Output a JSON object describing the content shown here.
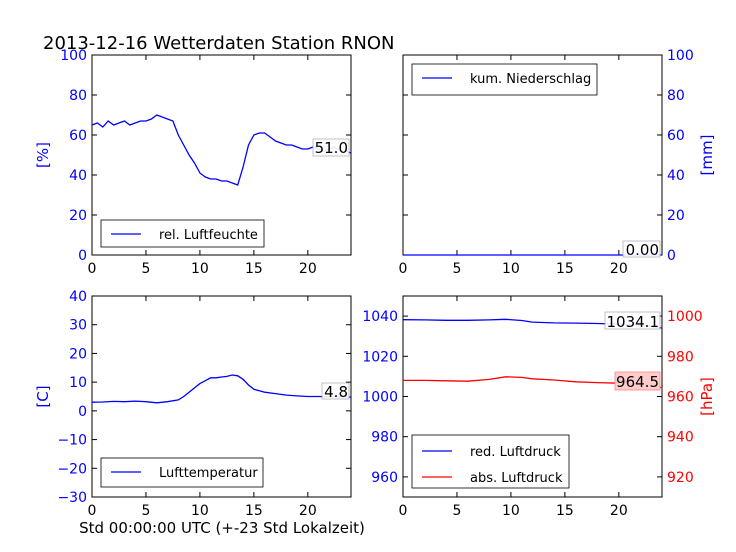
{
  "figure_title": "2013-12-16 Wetterdaten Station RNON",
  "x_axis_label": "Std 00:00:00 UTC (+-23 Std Lokalzeit)",
  "colors": {
    "blue": "#0000ff",
    "red": "#ff0000",
    "black": "#000000"
  },
  "chart_data": [
    {
      "type": "line",
      "xlim": [
        0,
        24
      ],
      "ylim": [
        0,
        100
      ],
      "ylabel": "[%]",
      "xticks": [
        0,
        5,
        10,
        15,
        20
      ],
      "yticks": [
        0,
        20,
        40,
        60,
        80,
        100
      ],
      "legend_position": "lower-left",
      "series": [
        {
          "name": "rel. Luftfeuchte",
          "color": "#0000ff",
          "x": [
            0,
            0.5,
            1,
            1.5,
            2,
            2.5,
            3,
            3.5,
            4,
            4.5,
            5,
            5.5,
            6,
            6.5,
            7,
            7.5,
            8,
            8.5,
            9,
            9.5,
            10,
            10.5,
            11,
            11.5,
            12,
            12.5,
            13,
            13.5,
            14,
            14.5,
            15,
            15.5,
            16,
            16.5,
            17,
            17.5,
            18,
            18.5,
            19,
            19.5,
            20,
            20.5,
            21,
            21.5,
            22,
            22.5,
            23,
            23.5,
            24
          ],
          "y": [
            65,
            66,
            64,
            67,
            65,
            66,
            67,
            65,
            66,
            67,
            67,
            68,
            70,
            69,
            68,
            67,
            60,
            55,
            50,
            46,
            41,
            39,
            38,
            38,
            37,
            37,
            36,
            35,
            44,
            55,
            60,
            61,
            61,
            59,
            57,
            56,
            55,
            55,
            54,
            53,
            53,
            54,
            53,
            52,
            53,
            54,
            52,
            52,
            51
          ]
        }
      ],
      "value_label": "51.0"
    },
    {
      "type": "line",
      "xlim": [
        0,
        24
      ],
      "ylim": [
        0,
        100
      ],
      "ylabel": "[mm]",
      "xticks": [
        0,
        5,
        10,
        15,
        20
      ],
      "yticks": [
        0,
        20,
        40,
        60,
        80,
        100
      ],
      "legend_position": "upper-left",
      "series": [
        {
          "name": "kum. Niederschlag",
          "color": "#0000ff",
          "x": [
            0,
            24
          ],
          "y": [
            0,
            0
          ]
        }
      ],
      "value_label": "0.00"
    },
    {
      "type": "line",
      "xlim": [
        0,
        24
      ],
      "ylim": [
        -30,
        40
      ],
      "ylabel": "[C]",
      "xticks": [
        0,
        5,
        10,
        15,
        20
      ],
      "yticks": [
        -30,
        -20,
        -10,
        0,
        10,
        20,
        30,
        40
      ],
      "legend_position": "lower-left",
      "series": [
        {
          "name": "Lufttemperatur",
          "color": "#0000ff",
          "x": [
            0,
            1,
            2,
            3,
            4,
            5,
            6,
            7,
            8,
            8.5,
            9,
            9.5,
            10,
            10.5,
            11,
            11.5,
            12,
            12.5,
            13,
            13.5,
            14,
            14.5,
            15,
            15.5,
            16,
            17,
            18,
            19,
            20,
            21,
            22,
            23,
            24
          ],
          "y": [
            3,
            3.1,
            3.3,
            3.2,
            3.4,
            3.2,
            2.8,
            3.2,
            3.8,
            5,
            6.5,
            8,
            9.5,
            10.5,
            11.5,
            11.5,
            11.8,
            12,
            12.5,
            12.2,
            11,
            9,
            7.5,
            7,
            6.5,
            6,
            5.5,
            5.2,
            5,
            5,
            4.9,
            4.9,
            4.8
          ]
        }
      ],
      "value_label": "4.8"
    },
    {
      "type": "line",
      "xlim": [
        0,
        24
      ],
      "ylim": [
        950,
        1050
      ],
      "ylim_right": [
        910,
        1010
      ],
      "ylabel": "",
      "ylabel_right": "[hPa]",
      "xticks": [
        0,
        5,
        10,
        15,
        20
      ],
      "yticks": [
        960,
        980,
        1000,
        1020,
        1040
      ],
      "yticks_right": [
        920,
        940,
        960,
        980,
        1000
      ],
      "legend_position": "lower-left",
      "series": [
        {
          "name": "red. Luftdruck",
          "color": "#0000ff",
          "axis": "left",
          "x": [
            0,
            2,
            4,
            6,
            8,
            9.5,
            11,
            12,
            14,
            16,
            18,
            20,
            22,
            24
          ],
          "y": [
            1038.2,
            1038.1,
            1037.9,
            1037.9,
            1038.1,
            1038.4,
            1037.8,
            1037.0,
            1036.6,
            1036.5,
            1036.3,
            1036.0,
            1035.6,
            1034.1
          ]
        },
        {
          "name": "abs. Luftdruck",
          "color": "#ff0000",
          "axis": "right",
          "x": [
            0,
            2,
            4,
            6,
            8,
            9.5,
            11,
            12,
            14,
            16,
            18,
            20,
            22,
            24
          ],
          "y": [
            968,
            968,
            967.8,
            967.6,
            968.5,
            969.8,
            969.5,
            968.8,
            968.2,
            967.3,
            966.9,
            966.6,
            966,
            964.5
          ]
        }
      ],
      "value_label": "1034.1",
      "value_label_2": "964.5"
    }
  ]
}
